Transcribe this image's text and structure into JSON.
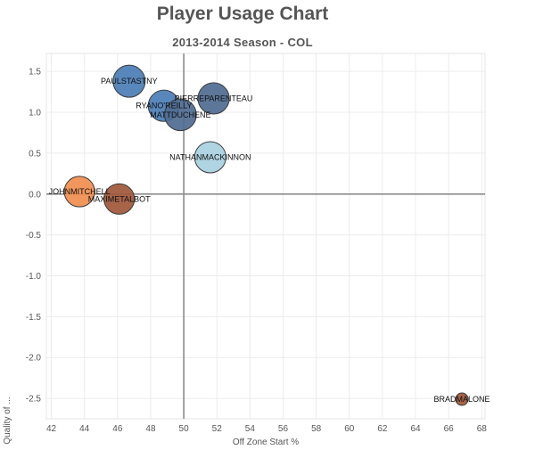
{
  "chart_data": {
    "type": "scatter",
    "title": "Player Usage Chart",
    "subtitle": "2013-2014 Season - COL",
    "xlabel": "Off Zone Start %",
    "ylabel": "Quality of ...",
    "xlim": [
      41.7,
      68.2
    ],
    "ylim": [
      -2.75,
      1.72
    ],
    "x_ticks": [
      42,
      44,
      46,
      48,
      50,
      52,
      54,
      56,
      58,
      60,
      62,
      64,
      66,
      68
    ],
    "y_ticks": [
      1.5,
      1.0,
      0.5,
      0.0,
      -0.5,
      -1.0,
      -1.5,
      -2.0,
      -2.5
    ],
    "y_tick_labels": [
      "1.5",
      "1.0",
      "0.5",
      "0.0",
      "-0.5",
      "-1.0",
      "-1.5",
      "-2.0",
      "-2.5"
    ],
    "x_tick_labels": [
      "42",
      "44",
      "46",
      "48",
      "50",
      "52",
      "54",
      "56",
      "58",
      "60",
      "62",
      "64",
      "66",
      "68"
    ],
    "reference_lines": {
      "x": 50,
      "y": 0
    },
    "grid": true,
    "points": [
      {
        "label": "PAULSTASTNY",
        "x": 46.7,
        "y": 1.38,
        "size": 1.0,
        "color": "#4a7db5"
      },
      {
        "label": "PIERREPARENTEAU",
        "x": 51.8,
        "y": 1.17,
        "size": 0.95,
        "color": "#4f6b91"
      },
      {
        "label": "RYANO'REILLY",
        "x": 48.8,
        "y": 1.08,
        "size": 0.95,
        "color": "#4a7db5"
      },
      {
        "label": "MATTDUCHENE",
        "x": 49.8,
        "y": 0.97,
        "size": 0.98,
        "color": "#4f6b91"
      },
      {
        "label": "NATHANMACKINNON",
        "x": 51.6,
        "y": 0.45,
        "size": 0.95,
        "color": "#a8d0e0"
      },
      {
        "label": "JOHNMITCHELL",
        "x": 43.7,
        "y": 0.03,
        "size": 0.9,
        "color": "#f08d4e"
      },
      {
        "label": "MAXIMETALBOT",
        "x": 46.1,
        "y": -0.06,
        "size": 0.9,
        "color": "#a0573a"
      },
      {
        "label": "BRADMALONE",
        "x": 66.8,
        "y": -2.51,
        "size": 0.15,
        "color": "#a0573a"
      }
    ]
  }
}
